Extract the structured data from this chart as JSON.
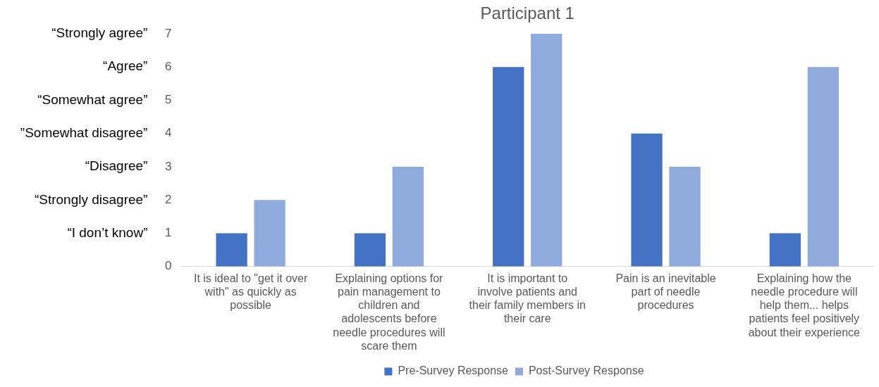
{
  "chart_data": {
    "type": "bar",
    "title": "Participant 1",
    "categories": [
      "It is ideal to \"get it over with\" as quickly as possible",
      "Explaining options for pain management to children and adolescents before needle procedures will scare them",
      "It is important to involve patients and their family members in their care",
      "Pain is an inevitable part of needle procedures",
      "Explaining how the needle procedure will help them... helps patients feel positively about their experience"
    ],
    "series": [
      {
        "name": "Pre-Survey Response",
        "color": "#4472c4",
        "values": [
          1,
          1,
          6,
          4,
          1
        ]
      },
      {
        "name": "Post-Survey Response",
        "color": "#8faadc",
        "values": [
          2,
          3,
          7,
          3,
          6
        ]
      }
    ],
    "ylim": [
      0,
      7
    ],
    "yticks": [
      0,
      1,
      2,
      3,
      4,
      5,
      6,
      7
    ],
    "annotations": [
      "“Strongly agree”",
      "“Agree”",
      "“Somewhat agree”",
      "”Somewhat disagree”",
      "“Disagree”",
      "“Strongly disagree”",
      "“I don’t know”"
    ],
    "grid": false,
    "legend": "bottom"
  }
}
